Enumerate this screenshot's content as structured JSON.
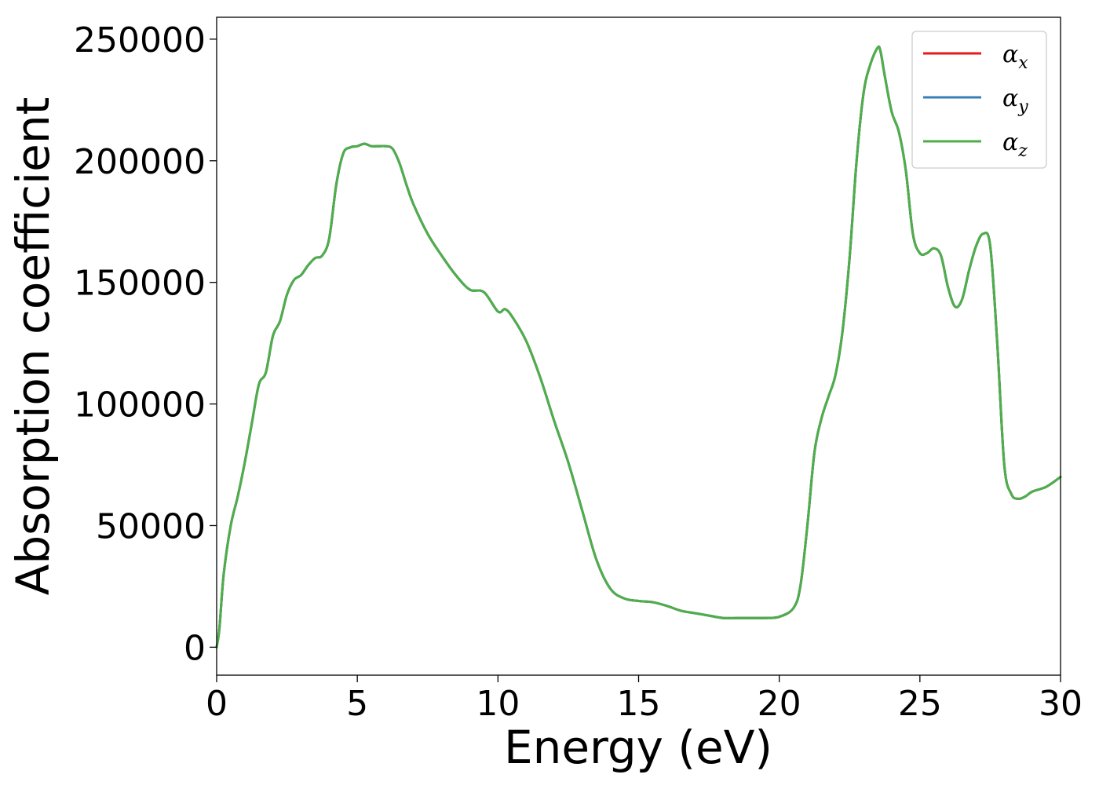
{
  "chart_data": {
    "type": "line",
    "title": "",
    "xlabel": "Energy (eV)",
    "ylabel": "Absorption coefficient",
    "xlim": [
      0,
      30
    ],
    "ylim": [
      -11500,
      259000
    ],
    "x_ticks": [
      0,
      5,
      10,
      15,
      20,
      25,
      30
    ],
    "x_tick_labels": [
      "0",
      "5",
      "10",
      "15",
      "20",
      "25",
      "30"
    ],
    "y_ticks": [
      0,
      50000,
      100000,
      150000,
      200000,
      250000
    ],
    "y_tick_labels": [
      "0",
      "50000",
      "100000",
      "150000",
      "200000",
      "250000"
    ],
    "grid": false,
    "legend_position": "top-right",
    "series": [
      {
        "name": "αx",
        "symbol": "α",
        "subscript": "x",
        "color": "#e41a1c",
        "x": [
          0,
          0.1,
          0.25,
          0.5,
          0.75,
          1,
          1.25,
          1.5,
          1.75,
          2,
          2.25,
          2.5,
          2.75,
          3,
          3.25,
          3.5,
          3.75,
          4,
          4.25,
          4.5,
          4.75,
          5,
          5.25,
          5.5,
          5.75,
          6,
          6.25,
          6.5,
          6.75,
          7,
          7.5,
          8,
          8.5,
          9,
          9.5,
          10,
          10.25,
          10.5,
          11,
          11.5,
          12,
          12.5,
          13,
          13.5,
          14,
          14.5,
          15,
          15.5,
          16,
          16.5,
          17,
          17.5,
          18,
          18.5,
          19,
          19.5,
          20,
          20.5,
          20.75,
          21,
          21.25,
          21.5,
          21.75,
          22,
          22.25,
          22.5,
          22.75,
          23,
          23.25,
          23.5,
          23.6,
          23.75,
          24,
          24.25,
          24.5,
          24.75,
          25,
          25.25,
          25.5,
          25.75,
          26,
          26.25,
          26.5,
          26.75,
          27,
          27.25,
          27.5,
          27.75,
          28,
          28.25,
          28.5,
          28.75,
          29,
          29.5,
          30
        ],
        "y": [
          0,
          8000,
          30000,
          50000,
          62000,
          76000,
          92000,
          108000,
          113000,
          128000,
          134000,
          145000,
          151000,
          153000,
          157000,
          160000,
          161000,
          168000,
          190000,
          203000,
          205500,
          206000,
          207000,
          206000,
          206000,
          206000,
          205000,
          199000,
          190000,
          182000,
          170000,
          161000,
          153000,
          147000,
          146000,
          138000,
          139000,
          136000,
          126000,
          111000,
          93000,
          76000,
          56000,
          36000,
          24000,
          20000,
          19000,
          18500,
          17000,
          15000,
          14000,
          13000,
          12000,
          12000,
          12000,
          12000,
          12500,
          16000,
          25000,
          50000,
          80000,
          94000,
          103000,
          112000,
          130000,
          160000,
          200000,
          228000,
          240000,
          246500,
          245000,
          235000,
          220000,
          212000,
          196000,
          170000,
          162000,
          162000,
          164000,
          161000,
          148000,
          140000,
          143000,
          155000,
          165000,
          170000,
          165000,
          125000,
          75000,
          63000,
          61000,
          62000,
          64000,
          66000,
          70000
        ]
      },
      {
        "name": "αy",
        "symbol": "α",
        "subscript": "y",
        "color": "#377eb8",
        "x": [
          0,
          0.1,
          0.25,
          0.5,
          0.75,
          1,
          1.25,
          1.5,
          1.75,
          2,
          2.25,
          2.5,
          2.75,
          3,
          3.25,
          3.5,
          3.75,
          4,
          4.25,
          4.5,
          4.75,
          5,
          5.25,
          5.5,
          5.75,
          6,
          6.25,
          6.5,
          6.75,
          7,
          7.5,
          8,
          8.5,
          9,
          9.5,
          10,
          10.25,
          10.5,
          11,
          11.5,
          12,
          12.5,
          13,
          13.5,
          14,
          14.5,
          15,
          15.5,
          16,
          16.5,
          17,
          17.5,
          18,
          18.5,
          19,
          19.5,
          20,
          20.5,
          20.75,
          21,
          21.25,
          21.5,
          21.75,
          22,
          22.25,
          22.5,
          22.75,
          23,
          23.25,
          23.5,
          23.6,
          23.75,
          24,
          24.25,
          24.5,
          24.75,
          25,
          25.25,
          25.5,
          25.75,
          26,
          26.25,
          26.5,
          26.75,
          27,
          27.25,
          27.5,
          27.75,
          28,
          28.25,
          28.5,
          28.75,
          29,
          29.5,
          30
        ],
        "y": [
          0,
          8000,
          30000,
          50000,
          62000,
          76000,
          92000,
          108000,
          113000,
          128000,
          134000,
          145000,
          151000,
          153000,
          157000,
          160000,
          161000,
          168000,
          190000,
          203000,
          205500,
          206000,
          207000,
          206000,
          206000,
          206000,
          205000,
          199000,
          190000,
          182000,
          170000,
          161000,
          153000,
          147000,
          146000,
          138000,
          139000,
          136000,
          126000,
          111000,
          93000,
          76000,
          56000,
          36000,
          24000,
          20000,
          19000,
          18500,
          17000,
          15000,
          14000,
          13000,
          12000,
          12000,
          12000,
          12000,
          12500,
          16000,
          25000,
          50000,
          80000,
          94000,
          103000,
          112000,
          130000,
          160000,
          200000,
          228000,
          240000,
          246500,
          245000,
          235000,
          220000,
          212000,
          196000,
          170000,
          162000,
          162000,
          164000,
          161000,
          148000,
          140000,
          143000,
          155000,
          165000,
          170000,
          165000,
          125000,
          75000,
          63000,
          61000,
          62000,
          64000,
          66000,
          70000
        ]
      },
      {
        "name": "αz",
        "symbol": "α",
        "subscript": "z",
        "color": "#4daf4a",
        "x": [
          0,
          0.1,
          0.25,
          0.5,
          0.75,
          1,
          1.25,
          1.5,
          1.75,
          2,
          2.25,
          2.5,
          2.75,
          3,
          3.25,
          3.5,
          3.75,
          4,
          4.25,
          4.5,
          4.75,
          5,
          5.25,
          5.5,
          5.75,
          6,
          6.25,
          6.5,
          6.75,
          7,
          7.5,
          8,
          8.5,
          9,
          9.5,
          10,
          10.25,
          10.5,
          11,
          11.5,
          12,
          12.5,
          13,
          13.5,
          14,
          14.5,
          15,
          15.5,
          16,
          16.5,
          17,
          17.5,
          18,
          18.5,
          19,
          19.5,
          20,
          20.5,
          20.75,
          21,
          21.25,
          21.5,
          21.75,
          22,
          22.25,
          22.5,
          22.75,
          23,
          23.25,
          23.5,
          23.6,
          23.75,
          24,
          24.25,
          24.5,
          24.75,
          25,
          25.25,
          25.5,
          25.75,
          26,
          26.25,
          26.5,
          26.75,
          27,
          27.25,
          27.5,
          27.75,
          28,
          28.25,
          28.5,
          28.75,
          29,
          29.5,
          30
        ],
        "y": [
          0,
          8000,
          30000,
          50000,
          62000,
          76000,
          92000,
          108000,
          113000,
          128000,
          134000,
          145000,
          151000,
          153000,
          157000,
          160000,
          161000,
          168000,
          190000,
          203000,
          205500,
          206000,
          207000,
          206000,
          206000,
          206000,
          205000,
          199000,
          190000,
          182000,
          170000,
          161000,
          153000,
          147000,
          146000,
          138000,
          139000,
          136000,
          126000,
          111000,
          93000,
          76000,
          56000,
          36000,
          24000,
          20000,
          19000,
          18500,
          17000,
          15000,
          14000,
          13000,
          12000,
          12000,
          12000,
          12000,
          12500,
          16000,
          25000,
          50000,
          80000,
          94000,
          103000,
          112000,
          130000,
          160000,
          200000,
          228000,
          240000,
          246500,
          245000,
          235000,
          220000,
          212000,
          196000,
          170000,
          162000,
          162000,
          164000,
          161000,
          148000,
          140000,
          143000,
          155000,
          165000,
          170000,
          165000,
          125000,
          75000,
          63000,
          61000,
          62000,
          64000,
          66000,
          70000
        ]
      }
    ]
  }
}
